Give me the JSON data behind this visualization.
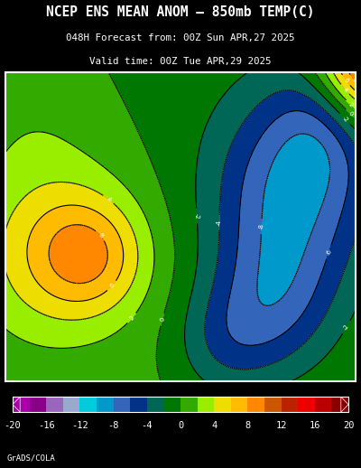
{
  "title_line1": "NCEP ENS MEAN ANOM – 850mb TEMP(C)",
  "title_line2": "048H Forecast from: 00Z Sun APR,27 2025",
  "title_line3": "Valid time: 00Z Tue APR,29 2025",
  "colorbar_ticks": [
    -20,
    -16,
    -12,
    -8,
    -4,
    0,
    4,
    8,
    12,
    16,
    20
  ],
  "cb_colors": [
    "#AA00AA",
    "#880088",
    "#9966BB",
    "#99AACC",
    "#00CCDD",
    "#0099CC",
    "#3366BB",
    "#003388",
    "#006655",
    "#007700",
    "#33AA00",
    "#99EE00",
    "#EEDD00",
    "#FFBB00",
    "#FF8800",
    "#CC5500",
    "#BB2200",
    "#EE0000",
    "#BB0000",
    "#880000"
  ],
  "background_color": "#000000",
  "title_color": "#FFFFFF",
  "watermark": "GrADS/COLA",
  "map_border_color": "#FFFFFF",
  "contour_line_color_main": "#000000",
  "contour_line_color_zero": "#AAAAAA",
  "seed": 7
}
